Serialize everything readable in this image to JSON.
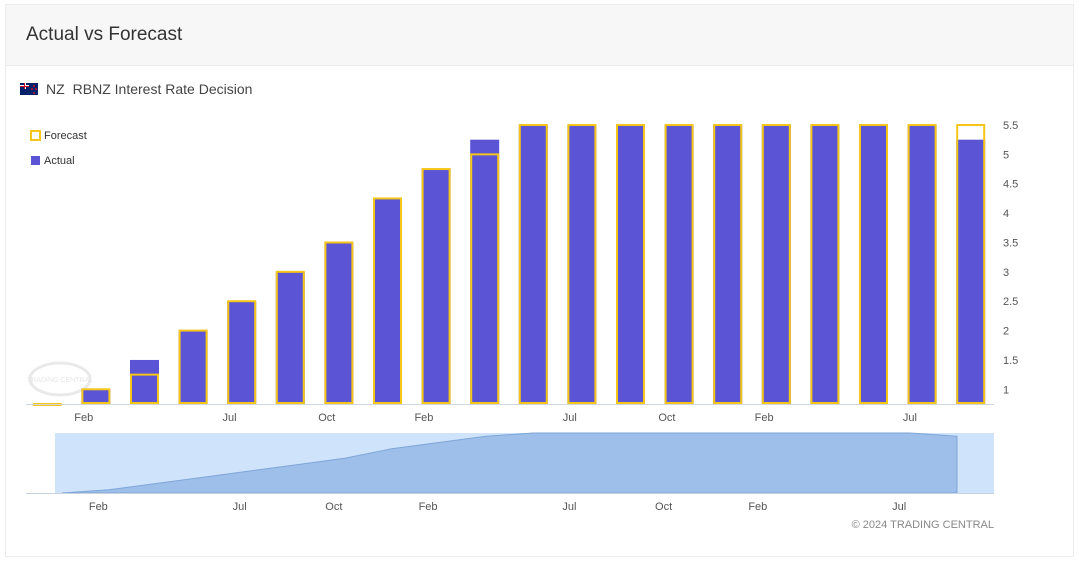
{
  "header": {
    "title": "Actual vs Forecast"
  },
  "indicator": {
    "country": "NZ",
    "name": "RBNZ Interest Rate Decision",
    "flag_icon": "new-zealand-flag-icon"
  },
  "legend": {
    "forecast_label": "Forecast",
    "actual_label": "Actual"
  },
  "colors": {
    "actual": "#5b55d6",
    "forecast": "#f5c518",
    "navigator_fill": "#9dbfe9",
    "navigator_bg": "#cfe3fb"
  },
  "chart_data": {
    "type": "bar",
    "series": [
      {
        "name": "Actual",
        "values": [
          null,
          1.0,
          1.5,
          2.0,
          2.5,
          3.0,
          3.5,
          4.25,
          4.75,
          5.25,
          5.5,
          5.5,
          5.5,
          5.5,
          5.5,
          5.5,
          5.5,
          5.5,
          5.5,
          5.25
        ]
      },
      {
        "name": "Forecast",
        "values": [
          0.75,
          1.0,
          1.25,
          2.0,
          2.5,
          3.0,
          3.5,
          4.25,
          4.75,
          5.0,
          5.5,
          5.5,
          5.5,
          5.5,
          5.5,
          5.5,
          5.5,
          5.5,
          5.5,
          5.5
        ]
      }
    ],
    "x_ticks": [
      "Feb",
      "Jul",
      "Oct",
      "Feb",
      "Jul",
      "Oct",
      "Feb",
      "Jul"
    ],
    "x_tick_positions": [
      1.25,
      4.25,
      6.25,
      8.25,
      11.25,
      13.25,
      15.25,
      18.25
    ],
    "y_ticks": [
      1,
      1.5,
      2,
      2.5,
      3,
      3.5,
      4,
      4.5,
      5,
      5.5
    ],
    "ylim": [
      0.75,
      5.55
    ],
    "legend": "top-left",
    "grid": false,
    "navigator": {
      "x_ticks": [
        "Feb",
        "Jul",
        "Oct",
        "Feb",
        "Jul",
        "Oct",
        "Feb",
        "Jul"
      ]
    }
  },
  "footer": {
    "copyright": "© 2024 TRADING CENTRAL"
  }
}
